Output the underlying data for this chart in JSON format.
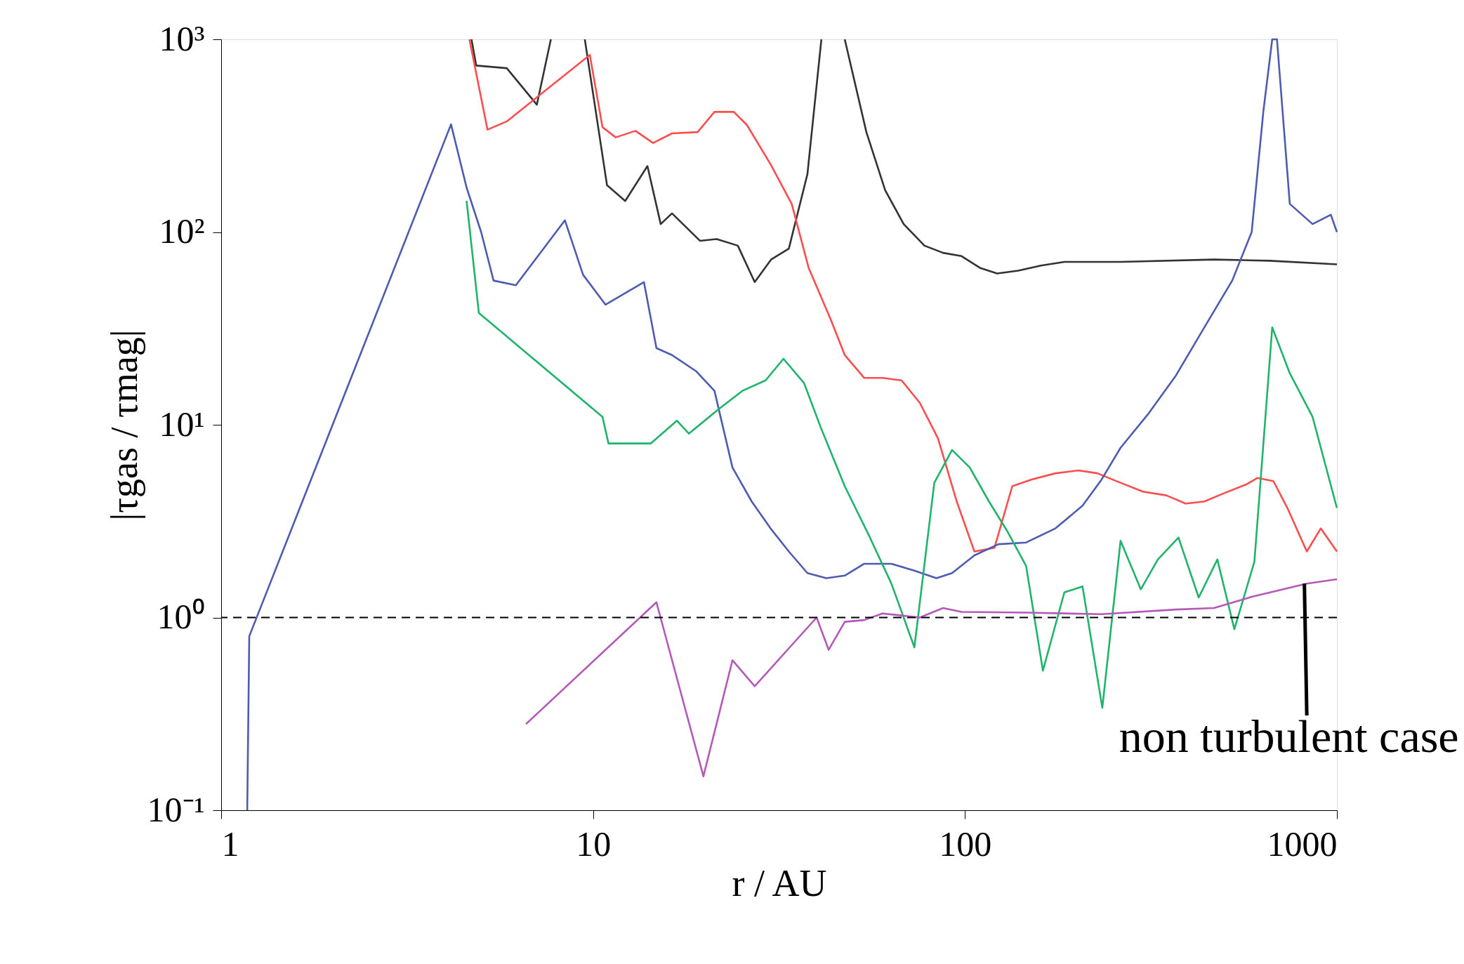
{
  "chart_data": {
    "type": "line",
    "xlabel": "r / AU",
    "ylabel": "|τgas / τmag|",
    "log": "xy",
    "grid": false,
    "marker": "none",
    "line_style": "solid",
    "xlim": [
      1,
      1000
    ],
    "xticks": [
      1,
      10,
      100,
      1000
    ],
    "ylim": [
      0.1,
      1000
    ],
    "yticks": [
      {
        "value": 0.1,
        "label": "10⁻¹"
      },
      {
        "value": 1,
        "label": "10⁰"
      },
      {
        "value": 10,
        "label": "10¹"
      },
      {
        "value": 100,
        "label": "10²"
      },
      {
        "value": 1000,
        "label": "10³"
      }
    ],
    "series": [
      {
        "color": "#333333",
        "x": [
          4.71,
          4.85,
          5.86,
          7.06,
          7.7,
          8.5,
          9.5,
          10.9,
          12.2,
          14.0,
          15.2,
          16.3,
          19.4,
          21.5,
          24.5,
          27.2,
          30.1,
          33.6,
          37.7,
          41.1,
          44,
          47.5,
          54.3,
          61.0,
          68.4,
          77.8,
          87.3,
          97.9,
          110,
          122,
          139,
          160,
          185,
          262,
          467,
          660,
          1000
        ],
        "values": [
          1000,
          731,
          708,
          458,
          1000,
          null,
          1000,
          175,
          145,
          220,
          110,
          125,
          90,
          92,
          85,
          55,
          72,
          82,
          200,
          1000,
          null,
          1000,
          330,
          165,
          110,
          85,
          78,
          75,
          65,
          61,
          63,
          67,
          70,
          70,
          72,
          71,
          68
        ]
      },
      {
        "color": "#ff4d4d",
        "x": [
          4.65,
          5.2,
          5.86,
          9.8,
          10.6,
          11.5,
          13.0,
          14.5,
          16.3,
          19.1,
          21.2,
          23.9,
          25.9,
          30,
          34.2,
          38,
          43.6,
          47.5,
          53.6,
          60,
          67.5,
          75.6,
          84.6,
          95,
          106,
          120,
          134,
          151,
          175,
          202,
          227,
          262,
          301,
          348,
          392,
          440,
          495,
          570,
          612,
          675,
          736,
          830,
          905,
          1000
        ],
        "values": [
          1000,
          340,
          375,
          830,
          350,
          310,
          335,
          290,
          325,
          330,
          420,
          420,
          360,
          225,
          140,
          65,
          35,
          23,
          17.5,
          17.5,
          17,
          13,
          8.5,
          4,
          2.2,
          2.3,
          4.8,
          5.2,
          5.6,
          5.8,
          5.6,
          5,
          4.5,
          4.3,
          3.9,
          4.0,
          4.4,
          4.9,
          5.3,
          5.1,
          3.7,
          2.2,
          2.9,
          2.2
        ]
      },
      {
        "color": "#4d5bb0",
        "x": [
          1.175,
          1.19,
          4.15,
          4.57,
          5.0,
          5.4,
          6.2,
          8.4,
          9.4,
          10.8,
          13.7,
          14.8,
          16.3,
          18.9,
          21.2,
          23.7,
          26.7,
          30,
          33.6,
          37.7,
          42.4,
          47.5,
          53.6,
          63.4,
          73.1,
          83.8,
          92.3,
          106,
          123,
          146,
          175,
          207,
          233,
          262,
          310,
          369,
          440,
          523,
          590,
          634,
          670,
          690,
          747,
          860,
          963,
          1000
        ],
        "values": [
          0.1,
          0.8,
          362,
          170,
          100,
          56,
          53,
          115,
          60,
          42,
          55,
          25,
          23,
          19,
          15,
          6,
          4,
          2.9,
          2.2,
          1.7,
          1.6,
          1.65,
          1.9,
          1.9,
          1.75,
          1.6,
          1.7,
          2.1,
          2.4,
          2.45,
          2.9,
          3.8,
          5.2,
          7.6,
          11.3,
          18,
          32,
          56,
          100,
          420,
          1000,
          1000,
          140,
          110,
          123,
          100
        ]
      },
      {
        "color": "#1fb36b",
        "x": [
          4.57,
          4.93,
          10.6,
          11.0,
          14.3,
          16.8,
          18.1,
          21.7,
          25.2,
          29.1,
          32.5,
          36.9,
          41.1,
          47.5,
          55,
          63.4,
          73.1,
          82.7,
          92.3,
          103,
          116,
          130,
          146,
          162,
          185,
          207,
          234,
          262,
          297,
          330,
          375,
          425,
          477,
          530,
          600,
          670,
          747,
          860,
          1000
        ],
        "values": [
          145,
          38,
          11,
          8,
          8,
          10.5,
          9,
          12,
          15,
          17,
          22,
          16.5,
          9.5,
          4.8,
          2.7,
          1.5,
          0.7,
          5,
          7.4,
          6,
          4,
          2.8,
          1.85,
          0.53,
          1.35,
          1.45,
          0.34,
          2.5,
          1.4,
          2.0,
          2.6,
          1.27,
          2.0,
          0.87,
          1.95,
          32,
          18.5,
          11,
          3.7
        ]
      },
      {
        "color": "#b35ab8",
        "x": [
          6.6,
          14.8,
          19.8,
          23.7,
          27.2,
          39.9,
          43,
          47.5,
          53.6,
          60,
          75.6,
          87.3,
          97.9,
          146,
          233,
          369,
          467,
          590,
          830,
          1000
        ],
        "values": [
          0.28,
          1.2,
          0.15,
          0.6,
          0.44,
          1.0,
          0.68,
          0.95,
          0.97,
          1.05,
          1.0,
          1.12,
          1.07,
          1.06,
          1.04,
          1.1,
          1.12,
          1.28,
          1.5,
          1.58
        ]
      }
    ],
    "ref_lines": [
      {
        "axis": "y",
        "value": 1,
        "line_style": "dashed",
        "color": "#000000"
      }
    ],
    "annotations": [
      {
        "text": "non turbulent case",
        "x": 830,
        "y": 1.5
      }
    ]
  }
}
